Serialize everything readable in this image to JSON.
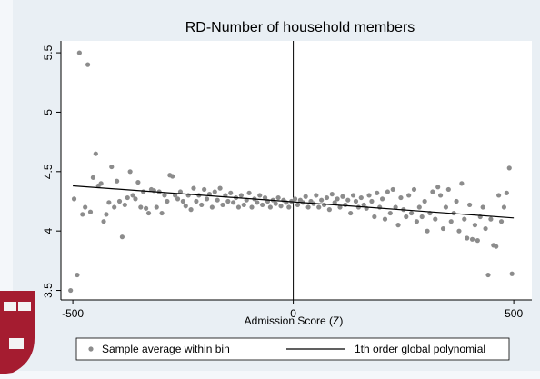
{
  "chart_data": {
    "type": "scatter",
    "title": "RD-Number of household members",
    "x_label": "Admission Score (Z)",
    "xlim": [
      -527,
      541
    ],
    "ylim": [
      3.42,
      5.6
    ],
    "xticks": [
      -500,
      0,
      500
    ],
    "yticks": [
      3.5,
      4,
      4.5,
      5,
      5.5
    ],
    "cutoff": 0,
    "series": [
      {
        "name": "Sample average within bin",
        "type": "scatter",
        "color": "#8c8c8c",
        "x": [
          -505,
          -497,
          -490,
          -485,
          -478,
          -472,
          -466,
          -460,
          -454,
          -448,
          -442,
          -436,
          -430,
          -424,
          -418,
          -412,
          -406,
          -400,
          -394,
          -388,
          -382,
          -376,
          -370,
          -364,
          -358,
          -352,
          -346,
          -340,
          -334,
          -328,
          -322,
          -316,
          -310,
          -304,
          -298,
          -292,
          -286,
          -280,
          -274,
          -268,
          -262,
          -256,
          -250,
          -244,
          -238,
          -232,
          -226,
          -220,
          -214,
          -208,
          -202,
          -196,
          -190,
          -184,
          -178,
          -172,
          -166,
          -160,
          -154,
          -148,
          -142,
          -136,
          -130,
          -124,
          -118,
          -112,
          -106,
          -100,
          -94,
          -88,
          -82,
          -76,
          -70,
          -64,
          -58,
          -52,
          -46,
          -40,
          -34,
          -28,
          -22,
          -16,
          -10,
          -4,
          4,
          10,
          16,
          22,
          28,
          34,
          40,
          46,
          52,
          58,
          64,
          70,
          76,
          82,
          88,
          94,
          100,
          106,
          112,
          118,
          124,
          130,
          136,
          142,
          148,
          154,
          160,
          166,
          172,
          178,
          184,
          190,
          196,
          202,
          208,
          214,
          220,
          226,
          232,
          238,
          244,
          250,
          256,
          262,
          268,
          274,
          280,
          286,
          292,
          298,
          304,
          310,
          316,
          322,
          328,
          334,
          340,
          346,
          352,
          358,
          364,
          370,
          376,
          382,
          388,
          394,
          400,
          406,
          412,
          418,
          424,
          430,
          436,
          442,
          448,
          454,
          460,
          466,
          472,
          478,
          484,
          490,
          496
        ],
        "values": [
          3.5,
          4.27,
          3.63,
          5.5,
          4.14,
          4.2,
          5.4,
          4.16,
          4.45,
          4.65,
          4.38,
          4.4,
          4.08,
          4.14,
          4.24,
          4.54,
          4.2,
          4.42,
          4.25,
          3.95,
          4.22,
          4.28,
          4.5,
          4.3,
          4.27,
          4.41,
          4.2,
          4.33,
          4.19,
          4.15,
          4.35,
          4.34,
          4.2,
          4.33,
          4.15,
          4.3,
          4.25,
          4.47,
          4.46,
          4.3,
          4.27,
          4.33,
          4.25,
          4.21,
          4.3,
          4.18,
          4.36,
          4.25,
          4.3,
          4.22,
          4.35,
          4.27,
          4.31,
          4.2,
          4.33,
          4.26,
          4.36,
          4.22,
          4.3,
          4.25,
          4.32,
          4.24,
          4.28,
          4.2,
          4.3,
          4.22,
          4.26,
          4.32,
          4.2,
          4.27,
          4.24,
          4.3,
          4.22,
          4.28,
          4.25,
          4.2,
          4.26,
          4.23,
          4.28,
          4.21,
          4.26,
          4.24,
          4.2,
          4.25,
          4.27,
          4.22,
          4.26,
          4.24,
          4.29,
          4.2,
          4.25,
          4.23,
          4.3,
          4.2,
          4.26,
          4.22,
          4.28,
          4.18,
          4.31,
          4.24,
          4.27,
          4.2,
          4.29,
          4.22,
          4.26,
          4.15,
          4.3,
          4.25,
          4.2,
          4.28,
          4.22,
          4.19,
          4.3,
          4.25,
          4.12,
          4.32,
          4.2,
          4.27,
          4.1,
          4.33,
          4.15,
          4.35,
          4.2,
          4.05,
          4.28,
          4.18,
          4.12,
          4.3,
          4.15,
          4.35,
          4.08,
          4.2,
          4.12,
          4.25,
          4.0,
          4.15,
          4.33,
          4.1,
          4.37,
          4.3,
          4.02,
          4.2,
          4.35,
          4.08,
          4.15,
          4.25,
          4.0,
          4.4,
          4.1,
          3.94,
          4.22,
          3.93,
          4.05,
          3.92,
          4.12,
          4.2,
          4.02,
          3.63,
          4.1,
          3.88,
          3.87,
          4.3,
          4.08,
          4.2,
          4.32,
          4.53,
          3.64
        ]
      },
      {
        "name": "1th order global polynomial",
        "type": "line",
        "color": "#000000",
        "x": [
          -500,
          0,
          500
        ],
        "values": [
          4.38,
          4.245,
          4.11
        ]
      }
    ]
  }
}
